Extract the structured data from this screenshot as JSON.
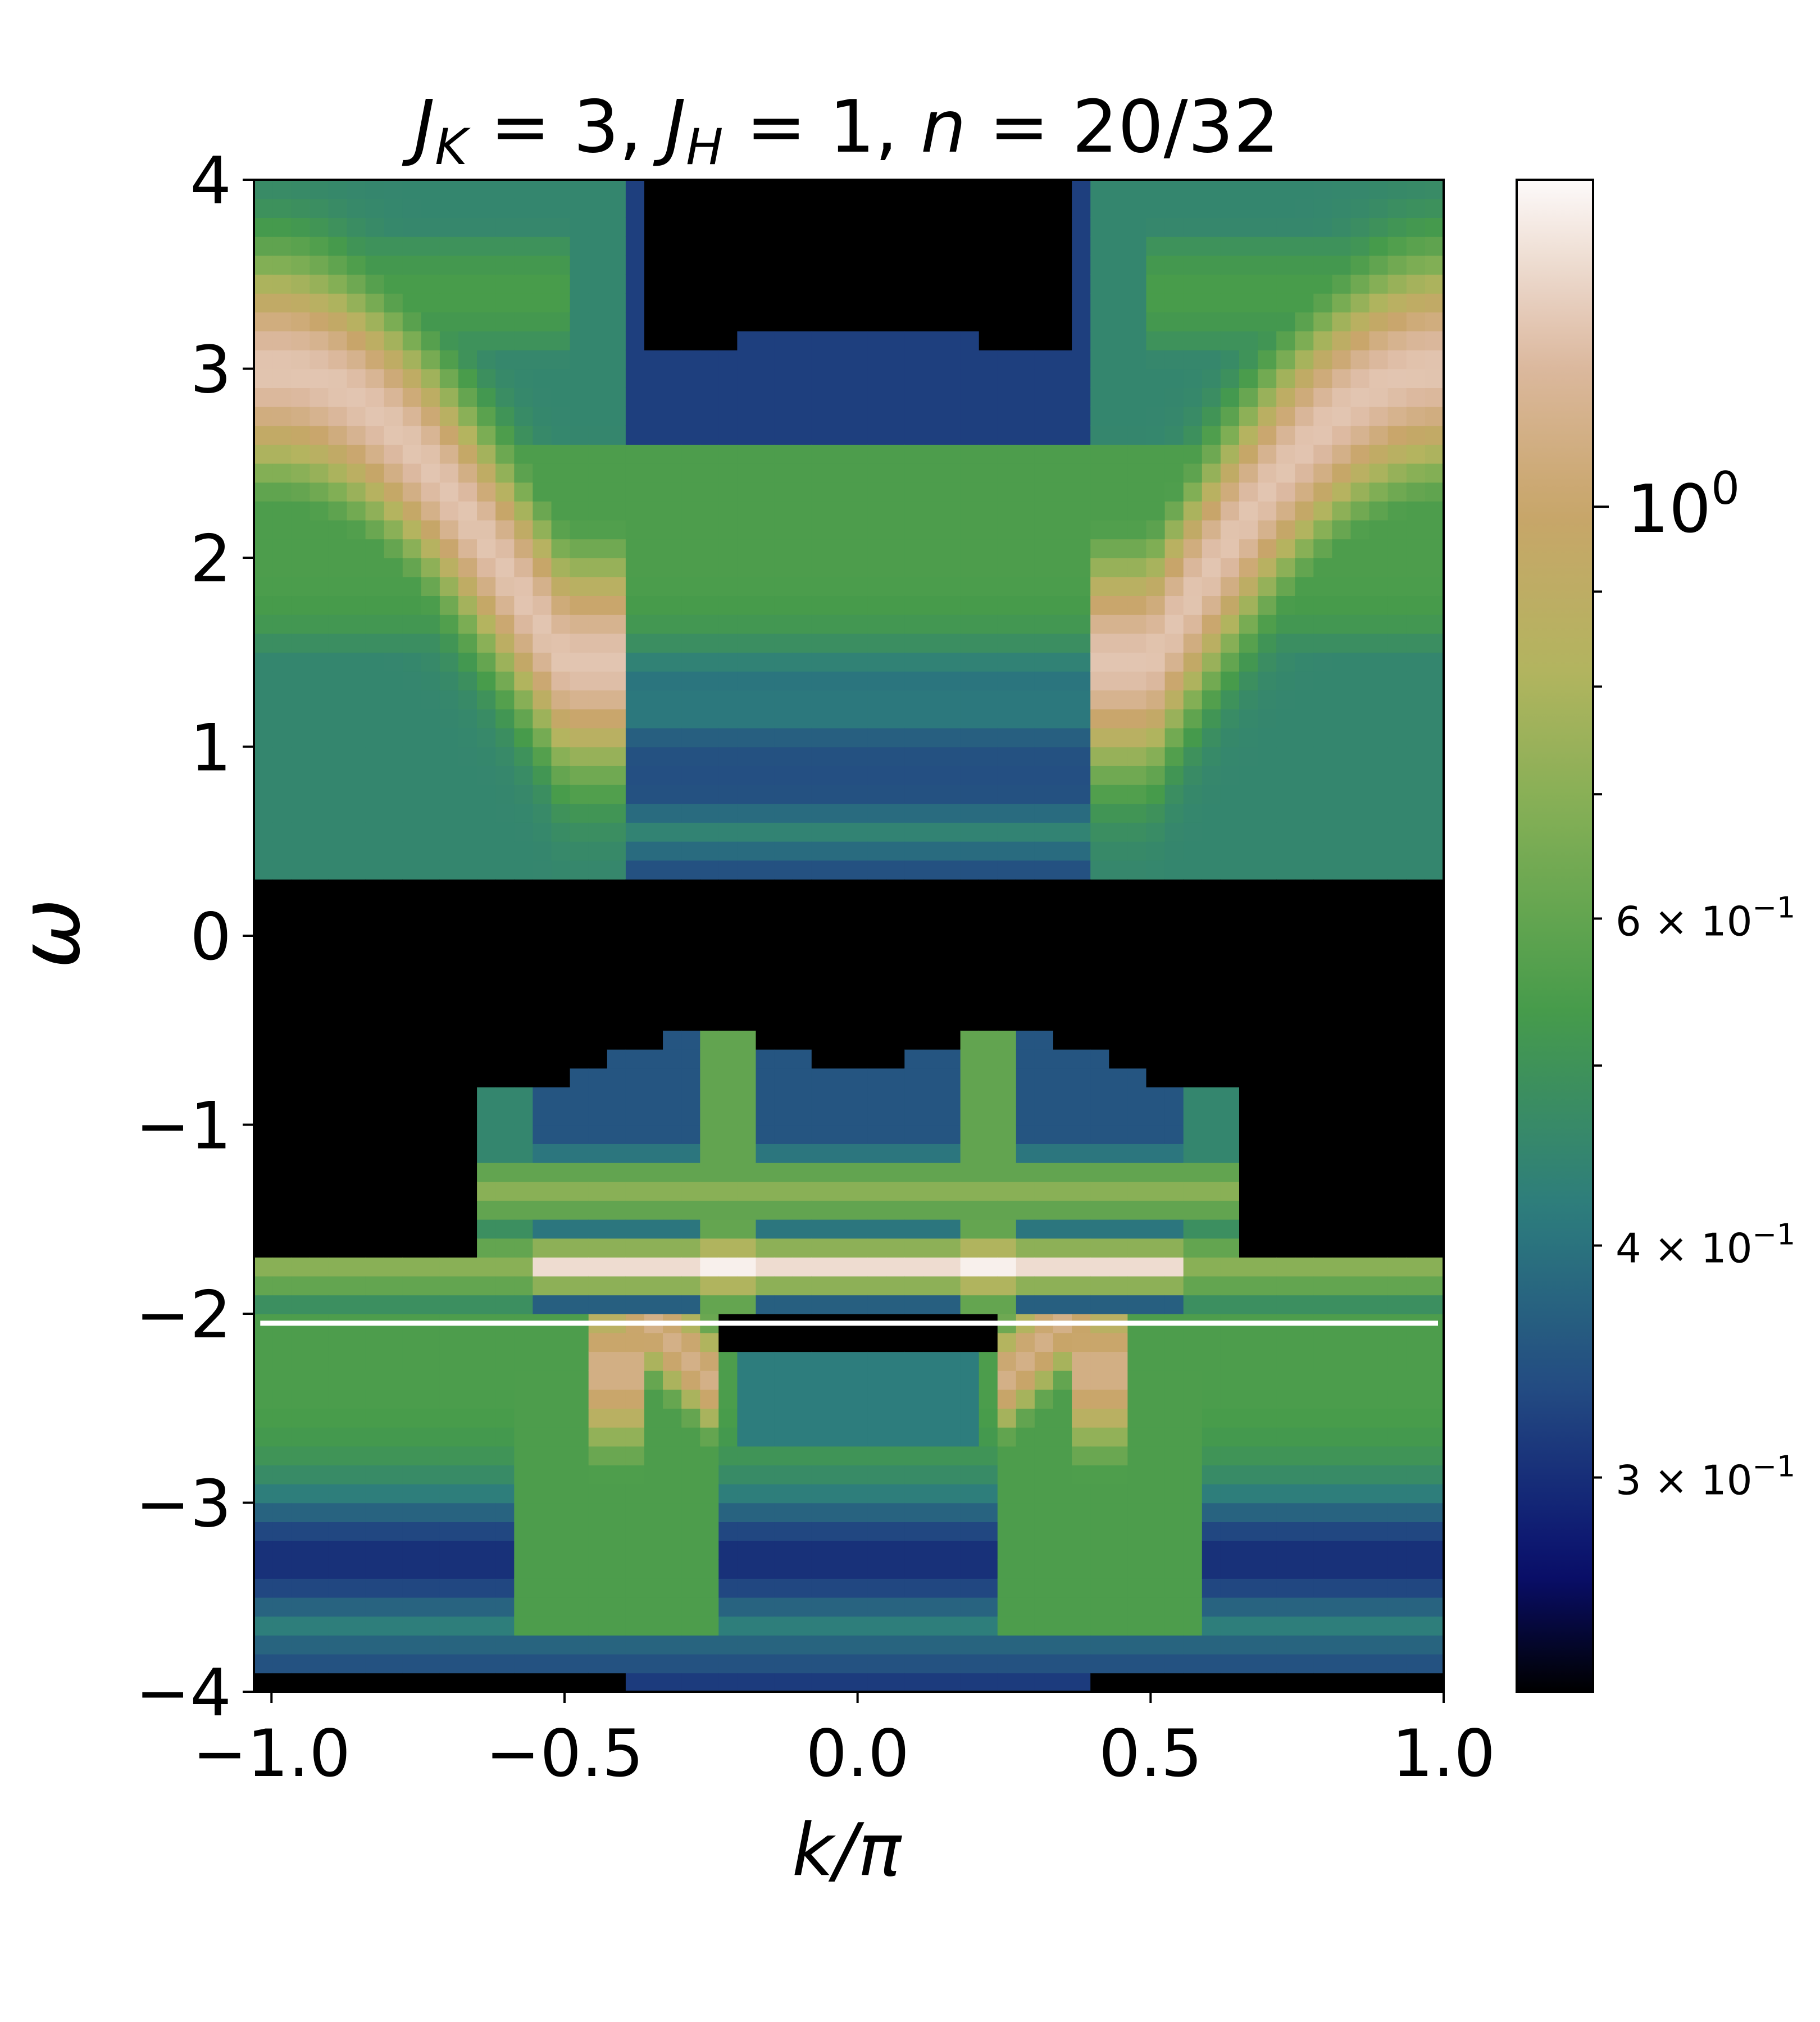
{
  "chart_data": {
    "type": "heatmap",
    "title": {
      "parts": [
        {
          "text": "J",
          "style": "italic"
        },
        {
          "text": "K",
          "style": "italic-sub"
        },
        {
          "text": " = 3, ",
          "style": "normal"
        },
        {
          "text": "J",
          "style": "italic"
        },
        {
          "text": "H",
          "style": "italic-sub"
        },
        {
          "text": " = 1, ",
          "style": "normal"
        },
        {
          "text": "n",
          "style": "italic"
        },
        {
          "text": " = 20/32",
          "style": "normal"
        }
      ]
    },
    "xlabel": "k/π",
    "ylabel": "ω",
    "xlim": [
      -1.03,
      1.0
    ],
    "ylim": [
      -4,
      4
    ],
    "x_ticks": [
      {
        "value": -1.0,
        "label": "−1.0"
      },
      {
        "value": -0.5,
        "label": "−0.5"
      },
      {
        "value": 0.0,
        "label": "0.0"
      },
      {
        "value": 0.5,
        "label": "0.5"
      },
      {
        "value": 1.0,
        "label": "1.0"
      }
    ],
    "y_ticks": [
      {
        "value": 4,
        "label": "4"
      },
      {
        "value": 3,
        "label": "3"
      },
      {
        "value": 2,
        "label": "2"
      },
      {
        "value": 1,
        "label": "1"
      },
      {
        "value": 0,
        "label": "0"
      },
      {
        "value": -1,
        "label": "−1"
      },
      {
        "value": -2,
        "label": "−2"
      },
      {
        "value": -3,
        "label": "−3"
      },
      {
        "value": -4,
        "label": "−4"
      }
    ],
    "grid": false,
    "colormap": "gist_earth",
    "color_scale": "log",
    "color_range": [
      0.23,
      1.5
    ],
    "colorbar_ticks": [
      {
        "value": 1.0,
        "label": "10",
        "exponent": "0",
        "major": true
      },
      {
        "value": 0.6,
        "label": "6 × 10",
        "exponent": "−1",
        "major": false
      },
      {
        "value": 0.4,
        "label": "4 × 10",
        "exponent": "−1",
        "major": false
      },
      {
        "value": 0.3,
        "label": "3 × 10",
        "exponent": "−1",
        "major": false
      }
    ],
    "colorbar_unlabeled_ticks": [
      0.9,
      0.8,
      0.7,
      0.5
    ],
    "marker_line": {
      "y": -2.05,
      "x_range": [
        -1.0,
        1.0
      ],
      "color": "#ffffff"
    },
    "grid_resolution": {
      "nk": 64,
      "nw": 80
    },
    "bands": [
      {
        "name": "upper main dispersing band",
        "k_range": [
          -1.03,
          1.0
        ],
        "omega_center": "1.45 + 1.55*cos^2(pi*k/2)-like, ~3.0 at k=±1, ~1.45 at k=±0.45",
        "peak": 1.3
      },
      {
        "name": "upper flat continuum",
        "k_range": [
          -0.5,
          0.5
        ],
        "omega_range": [
          1.3,
          2.6
        ],
        "peak": 0.6
      },
      {
        "name": "gap-edge bands",
        "omega_values": [
          0.5,
          1.0
        ],
        "peak": 0.4
      },
      {
        "name": "lower flat band",
        "k_range": [
          -0.5,
          0.5
        ],
        "omega": -1.75,
        "peak": 1.45
      },
      {
        "name": "lower V band",
        "k_range": [
          -0.4,
          0.4
        ],
        "omega_at_k0": -3.05,
        "peak": 1.1
      },
      {
        "name": "lower continuum",
        "omega_range": [
          -4.0,
          -2.1
        ],
        "peak": 0.7
      }
    ]
  }
}
